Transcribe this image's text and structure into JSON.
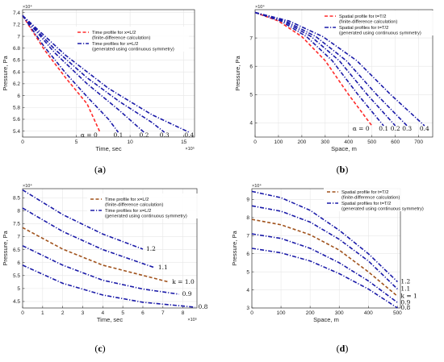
{
  "colors": {
    "red": "#ff2a2a",
    "blue": "#1a1aa8",
    "brown": "#a0521c",
    "grid": "#e6e6e6",
    "axis": "#333333"
  },
  "chart_data": [
    {
      "id": "a",
      "type": "line",
      "panel_label": "a",
      "xlabel": "Time, sec",
      "ylabel": "Pressure, Pa",
      "x_exponent": "×10⁵",
      "y_exponent": "×10⁴",
      "xlim": [
        0,
        16
      ],
      "ylim": [
        5.3,
        7.45
      ],
      "xticks": [
        0,
        5,
        10,
        15
      ],
      "yticks": [
        5.4,
        5.6,
        5.8,
        6.0,
        6.2,
        6.4,
        6.6,
        6.8,
        7.0,
        7.2,
        7.4
      ],
      "ytick_labels": [
        "5.4",
        "5.6",
        "5.8",
        "6",
        "6.2",
        "6.4",
        "6.6",
        "6.8",
        "7",
        "7.2",
        "7.4"
      ],
      "grid": true,
      "legend": [
        {
          "style": "ref",
          "lines": [
            "Time profile for x=L/2",
            "(finite-difference calculation)"
          ]
        },
        {
          "style": "sym",
          "lines": [
            "Time profiles for x=L/2",
            "(generated using continuous symmetry)"
          ]
        }
      ],
      "series": [
        {
          "style": "ref",
          "label": "α = 0",
          "points": [
            [
              0,
              7.35
            ],
            [
              2,
              6.78
            ],
            [
              4,
              6.3
            ],
            [
              6,
              5.86
            ],
            [
              7.2,
              5.38
            ]
          ]
        },
        {
          "style": "sym",
          "label": "0.1",
          "points": [
            [
              0,
              7.35
            ],
            [
              2,
              6.83
            ],
            [
              4,
              6.38
            ],
            [
              6,
              5.98
            ],
            [
              8,
              5.6
            ],
            [
              8.9,
              5.38
            ]
          ]
        },
        {
          "style": "sym",
          "label": "0.2",
          "points": [
            [
              0,
              7.35
            ],
            [
              3,
              6.72
            ],
            [
              6,
              6.2
            ],
            [
              9,
              5.75
            ],
            [
              11.3,
              5.38
            ]
          ]
        },
        {
          "style": "sym",
          "label": "0.3",
          "points": [
            [
              0,
              7.35
            ],
            [
              3,
              6.78
            ],
            [
              6,
              6.3
            ],
            [
              9,
              5.9
            ],
            [
              12,
              5.55
            ],
            [
              13.2,
              5.38
            ]
          ]
        },
        {
          "style": "sym",
          "label": "0.4",
          "points": [
            [
              0,
              7.35
            ],
            [
              4,
              6.68
            ],
            [
              8,
              6.12
            ],
            [
              12,
              5.68
            ],
            [
              15.5,
              5.38
            ]
          ]
        }
      ]
    },
    {
      "id": "b",
      "type": "line",
      "panel_label": "b",
      "xlabel": "Space, m",
      "ylabel": "Pressure, Pa",
      "y_exponent": "×10⁴",
      "xlim": [
        0,
        760
      ],
      "ylim": [
        3.5,
        8.0
      ],
      "xticks": [
        0,
        100,
        200,
        300,
        400,
        500,
        600,
        700
      ],
      "yticks": [
        4,
        5,
        6,
        7
      ],
      "ytick_labels": [
        "4",
        "5",
        "6",
        "7"
      ],
      "grid": true,
      "legend": [
        {
          "style": "ref",
          "lines": [
            "Spatial profile for t=T/2",
            "(finite-difference calculation)"
          ]
        },
        {
          "style": "sym",
          "lines": [
            "Spatial profiles for t=T/2",
            "(generated using continuous symmetry)"
          ]
        }
      ],
      "series": [
        {
          "style": "ref",
          "label": "α = 0",
          "points": [
            [
              0,
              7.9
            ],
            [
              100,
              7.6
            ],
            [
              200,
              7.05
            ],
            [
              300,
              6.2
            ],
            [
              400,
              5.0
            ],
            [
              500,
              3.9
            ]
          ]
        },
        {
          "style": "sym",
          "label": "0.1",
          "points": [
            [
              0,
              7.9
            ],
            [
              110,
              7.6
            ],
            [
              220,
              7.05
            ],
            [
              330,
              6.2
            ],
            [
              440,
              5.0
            ],
            [
              550,
              3.9
            ]
          ]
        },
        {
          "style": "sym",
          "label": "0.2",
          "points": [
            [
              0,
              7.9
            ],
            [
              120,
              7.6
            ],
            [
              240,
              7.05
            ],
            [
              360,
              6.2
            ],
            [
              480,
              5.0
            ],
            [
              600,
              3.9
            ]
          ]
        },
        {
          "style": "sym",
          "label": "0.3",
          "points": [
            [
              0,
              7.9
            ],
            [
              130,
              7.6
            ],
            [
              260,
              7.05
            ],
            [
              390,
              6.2
            ],
            [
              520,
              5.0
            ],
            [
              650,
              3.9
            ]
          ]
        },
        {
          "style": "sym",
          "label": "0.4",
          "points": [
            [
              0,
              7.9
            ],
            [
              145,
              7.6
            ],
            [
              290,
              7.05
            ],
            [
              435,
              6.2
            ],
            [
              580,
              5.0
            ],
            [
              725,
              3.9
            ]
          ]
        }
      ]
    },
    {
      "id": "c",
      "type": "line",
      "panel_label": "c",
      "xlabel": "Time, sec",
      "ylabel": "Pressure, Pa",
      "x_exponent": "×10⁵",
      "y_exponent": "×10⁴",
      "xlim": [
        0,
        8.7
      ],
      "ylim": [
        4.25,
        8.85
      ],
      "xticks": [
        0,
        1,
        2,
        3,
        4,
        5,
        6,
        7,
        8
      ],
      "yticks": [
        4.5,
        5.0,
        5.5,
        6.0,
        6.5,
        7.0,
        7.5,
        8.0,
        8.5
      ],
      "ytick_labels": [
        "4.5",
        "5",
        "5.5",
        "6",
        "6.5",
        "7",
        "7.5",
        "8",
        "8.5"
      ],
      "grid": true,
      "legend": [
        {
          "style": "ref",
          "lines": [
            "Time profile for x=L/2",
            "(finite-difference calculation)"
          ]
        },
        {
          "style": "sym",
          "lines": [
            "Time profiles for x=L/2",
            "(generated using continuous symmetry)"
          ]
        }
      ],
      "series": [
        {
          "style": "sym",
          "label": "1.2",
          "points": [
            [
              0,
              8.8
            ],
            [
              2,
              7.85
            ],
            [
              4,
              7.1
            ],
            [
              6.0,
              6.52
            ]
          ]
        },
        {
          "style": "sym",
          "label": "1.1",
          "points": [
            [
              0,
              8.1
            ],
            [
              2,
              7.2
            ],
            [
              4,
              6.5
            ],
            [
              6.6,
              5.8
            ]
          ]
        },
        {
          "style": "ref",
          "label": "k = 1.0",
          "points": [
            [
              0,
              7.35
            ],
            [
              2,
              6.52
            ],
            [
              4,
              5.9
            ],
            [
              7.3,
              5.25
            ]
          ]
        },
        {
          "style": "sym",
          "label": "0.9",
          "points": [
            [
              0,
              6.65
            ],
            [
              2,
              5.9
            ],
            [
              4,
              5.32
            ],
            [
              6,
              4.98
            ],
            [
              7.8,
              4.78
            ]
          ]
        },
        {
          "style": "sym",
          "label": "0.8",
          "points": [
            [
              0,
              5.9
            ],
            [
              2,
              5.2
            ],
            [
              4,
              4.75
            ],
            [
              6,
              4.47
            ],
            [
              8.6,
              4.28
            ]
          ]
        }
      ]
    },
    {
      "id": "d",
      "type": "line",
      "panel_label": "d",
      "xlabel": "Space, m",
      "ylabel": "Pressure, Pa",
      "y_exponent": "×10⁴",
      "xlim": [
        0,
        510
      ],
      "ylim": [
        3.0,
        9.6
      ],
      "xticks": [
        0,
        100,
        200,
        300,
        400,
        500
      ],
      "yticks": [
        3,
        4,
        5,
        6,
        7,
        8,
        9
      ],
      "ytick_labels": [
        "3",
        "4",
        "5",
        "6",
        "7",
        "8",
        "9"
      ],
      "grid": true,
      "legend": [
        {
          "style": "ref",
          "lines": [
            "Spatial profile for t=T/2",
            "(finite-difference calculation)"
          ]
        },
        {
          "style": "sym",
          "lines": [
            "Spatial profiles for t=T/2",
            "(generated using continuous symmetry)"
          ]
        }
      ],
      "series": [
        {
          "style": "sym",
          "label": "1.2",
          "points": [
            [
              0,
              9.45
            ],
            [
              100,
              9.1
            ],
            [
              200,
              8.4
            ],
            [
              300,
              7.3
            ],
            [
              400,
              6.0
            ],
            [
              500,
              4.45
            ]
          ]
        },
        {
          "style": "sym",
          "label": "1.1",
          "points": [
            [
              0,
              8.65
            ],
            [
              100,
              8.35
            ],
            [
              200,
              7.75
            ],
            [
              300,
              6.8
            ],
            [
              400,
              5.6
            ],
            [
              500,
              4.05
            ]
          ]
        },
        {
          "style": "ref",
          "label": "k = 1",
          "points": [
            [
              0,
              7.9
            ],
            [
              100,
              7.6
            ],
            [
              200,
              7.05
            ],
            [
              300,
              6.2
            ],
            [
              400,
              5.0
            ],
            [
              500,
              3.65
            ]
          ]
        },
        {
          "style": "sym",
          "label": "0.9",
          "points": [
            [
              0,
              7.1
            ],
            [
              100,
              6.85
            ],
            [
              200,
              6.3
            ],
            [
              300,
              5.5
            ],
            [
              400,
              4.5
            ],
            [
              500,
              3.3
            ]
          ]
        },
        {
          "style": "sym",
          "label": "0.8",
          "points": [
            [
              0,
              6.3
            ],
            [
              100,
              6.05
            ],
            [
              200,
              5.6
            ],
            [
              300,
              4.9
            ],
            [
              400,
              4.05
            ],
            [
              500,
              3.0
            ]
          ]
        }
      ]
    }
  ]
}
